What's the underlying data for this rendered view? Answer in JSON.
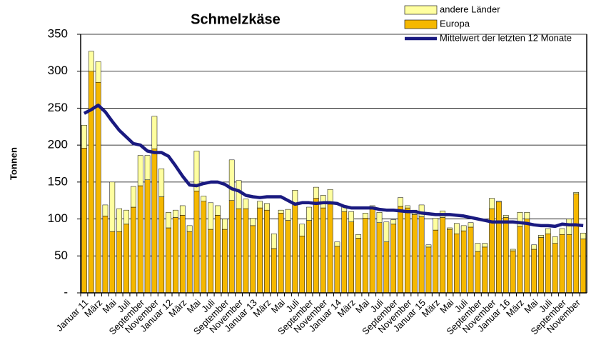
{
  "chart_data": {
    "type": "bar",
    "stacked": true,
    "title": "Schmelzkäse",
    "y_label": "Tonnen",
    "categories": [
      "Januar 11",
      null,
      "März",
      null,
      "Mai",
      null,
      "Juli",
      null,
      "September",
      null,
      "November",
      null,
      "Januar 12",
      null,
      "März",
      null,
      "Mai",
      null,
      "Juli",
      null,
      "September",
      null,
      "November",
      null,
      "Januar 13",
      null,
      "März",
      null,
      "Mai",
      null,
      "Juli",
      null,
      "September",
      null,
      "November",
      null,
      "Januar 14",
      null,
      "März",
      null,
      "Mai",
      null,
      "Juli",
      null,
      "September",
      null,
      "November",
      null,
      "Januar 15",
      null,
      "März",
      null,
      "Mai",
      null,
      "Juli",
      null,
      "September",
      null,
      "November",
      null,
      "Januar 16",
      null,
      "März",
      null,
      "Mai",
      null,
      "Juli",
      null,
      "September",
      null,
      "November",
      null
    ],
    "series": [
      {
        "name": "Europa",
        "color": "#f5b800",
        "values": [
          196,
          300,
          285,
          104,
          83,
          83,
          93,
          116,
          145,
          153,
          195,
          130,
          88,
          102,
          105,
          83,
          138,
          124,
          86,
          105,
          86,
          125,
          114,
          114,
          91,
          115,
          112,
          60,
          108,
          98,
          121,
          77,
          98,
          128,
          115,
          120,
          63,
          110,
          96,
          74,
          101,
          114,
          95,
          69,
          93,
          117,
          115,
          106,
          103,
          62,
          85,
          102,
          86,
          80,
          84,
          89,
          56,
          62,
          114,
          123,
          102,
          57,
          90,
          100,
          59,
          75,
          80,
          67,
          79,
          79,
          134,
          73
        ]
      },
      {
        "name": "andere Länder",
        "color": "#ffffa0",
        "values": [
          31,
          27,
          28,
          15,
          67,
          31,
          19,
          28,
          41,
          33,
          44,
          38,
          21,
          10,
          13,
          8,
          54,
          7,
          36,
          13,
          14,
          55,
          38,
          13,
          10,
          9,
          9,
          20,
          4,
          15,
          18,
          16,
          18,
          15,
          17,
          20,
          6,
          6,
          14,
          5,
          7,
          4,
          14,
          27,
          6,
          12,
          3,
          6,
          16,
          3,
          16,
          9,
          2,
          14,
          7,
          6,
          11,
          5,
          14,
          1,
          3,
          2,
          19,
          9,
          6,
          3,
          7,
          9,
          8,
          21,
          2,
          8
        ]
      },
      {
        "name": "Mittelwert der letzten 12 Monate",
        "type": "line",
        "color": "#1a1a80",
        "values": [
          243,
          248,
          254,
          245,
          232,
          220,
          211,
          202,
          200,
          192,
          190,
          190,
          185,
          172,
          158,
          146,
          145,
          148,
          150,
          150,
          147,
          141,
          138,
          132,
          130,
          129,
          130,
          130,
          130,
          125,
          120,
          122,
          122,
          121,
          122,
          122,
          121,
          117,
          115,
          115,
          115,
          115,
          113,
          112,
          112,
          111,
          110,
          110,
          108,
          107,
          106,
          106,
          106,
          105,
          104,
          102,
          100,
          98,
          96,
          96,
          96,
          96,
          95,
          94,
          92,
          91,
          91,
          90,
          93,
          92,
          92,
          91
        ]
      }
    ],
    "ylim": [
      0,
      350
    ],
    "yticks": [
      {
        "value": 0,
        "label": "-"
      },
      50,
      100,
      150,
      200,
      250,
      300,
      350
    ],
    "grid": true,
    "legend": "top-right"
  }
}
